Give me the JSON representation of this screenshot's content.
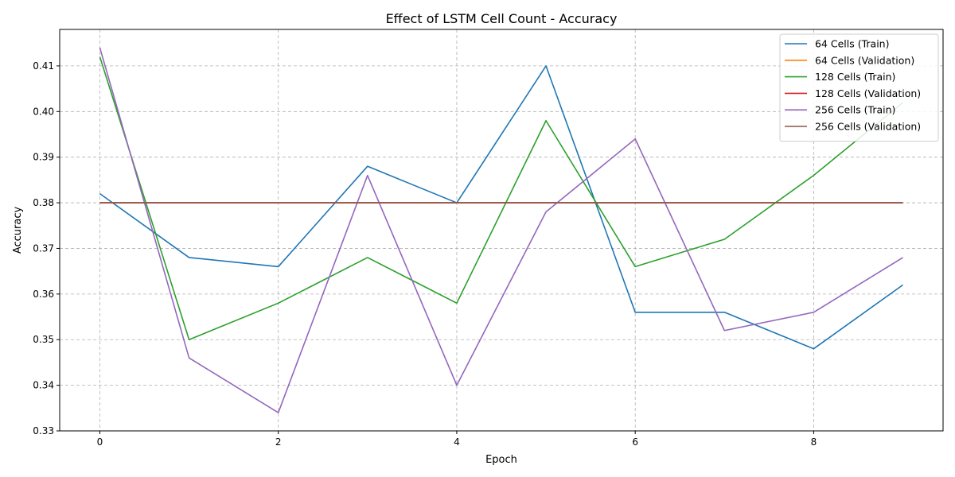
{
  "chart_data": {
    "type": "line",
    "title": "Effect of LSTM Cell Count - Accuracy",
    "xlabel": "Epoch",
    "ylabel": "Accuracy",
    "x": [
      0,
      1,
      2,
      3,
      4,
      5,
      6,
      7,
      8,
      9
    ],
    "xlim": [
      -0.45,
      9.45
    ],
    "ylim": [
      0.33,
      0.418
    ],
    "xticks": [
      0,
      2,
      4,
      6,
      8
    ],
    "yticks": [
      0.33,
      0.34,
      0.35,
      0.36,
      0.37,
      0.38,
      0.39,
      0.4,
      0.41
    ],
    "ytick_labels": [
      "0.33",
      "0.34",
      "0.35",
      "0.36",
      "0.37",
      "0.38",
      "0.39",
      "0.40",
      "0.41"
    ],
    "grid": true,
    "legend_position": "top-right",
    "series": [
      {
        "name": "64 Cells (Train)",
        "color": "#1f77b4",
        "values": [
          0.382,
          0.368,
          0.366,
          0.388,
          0.38,
          0.41,
          0.356,
          0.356,
          0.348,
          0.362
        ]
      },
      {
        "name": "64 Cells (Validation)",
        "color": "#ff7f0e",
        "values": [
          0.38,
          0.38,
          0.38,
          0.38,
          0.38,
          0.38,
          0.38,
          0.38,
          0.38,
          0.38
        ]
      },
      {
        "name": "128 Cells (Train)",
        "color": "#2ca02c",
        "values": [
          0.412,
          0.35,
          0.358,
          0.368,
          0.358,
          0.398,
          0.366,
          0.372,
          0.386,
          0.402
        ]
      },
      {
        "name": "128 Cells (Validation)",
        "color": "#d62728",
        "values": [
          0.38,
          0.38,
          0.38,
          0.38,
          0.38,
          0.38,
          0.38,
          0.38,
          0.38,
          0.38
        ]
      },
      {
        "name": "256 Cells (Train)",
        "color": "#9467bd",
        "values": [
          0.414,
          0.346,
          0.334,
          0.386,
          0.34,
          0.378,
          0.394,
          0.352,
          0.356,
          0.368
        ]
      },
      {
        "name": "256 Cells (Validation)",
        "color": "#8c564b",
        "values": [
          0.38,
          0.38,
          0.38,
          0.38,
          0.38,
          0.38,
          0.38,
          0.38,
          0.38,
          0.38
        ]
      }
    ]
  }
}
